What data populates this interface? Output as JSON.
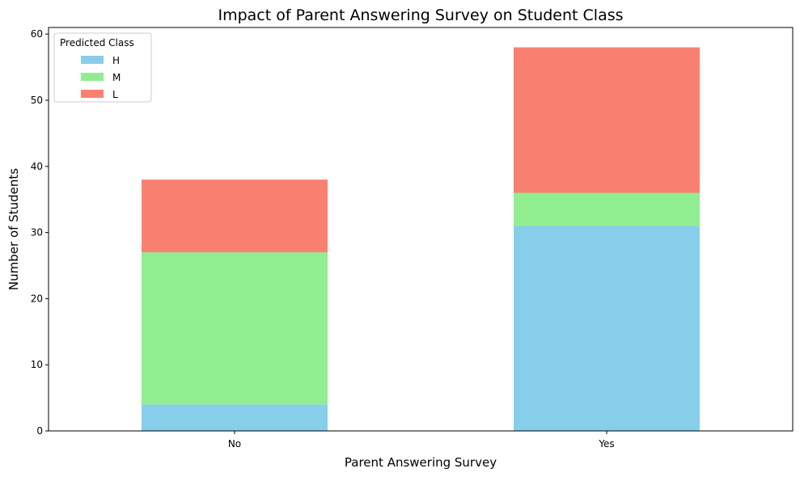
{
  "chart_data": {
    "type": "bar",
    "stacked": true,
    "title": "Impact of Parent Answering Survey on Student Class",
    "xlabel": "Parent Answering Survey",
    "ylabel": "Number of Students",
    "categories": [
      "No",
      "Yes"
    ],
    "series": [
      {
        "name": "H",
        "values": [
          4,
          31
        ],
        "color": "#87ceeb"
      },
      {
        "name": "M",
        "values": [
          23,
          5
        ],
        "color": "#90ee90"
      },
      {
        "name": "L",
        "values": [
          11,
          22
        ],
        "color": "#fa8072"
      }
    ],
    "ylim": [
      0,
      61
    ],
    "yticks": [
      0,
      10,
      20,
      30,
      40,
      50,
      60
    ],
    "legend": {
      "title": "Predicted Class",
      "position": "upper-left"
    },
    "grid": false
  }
}
